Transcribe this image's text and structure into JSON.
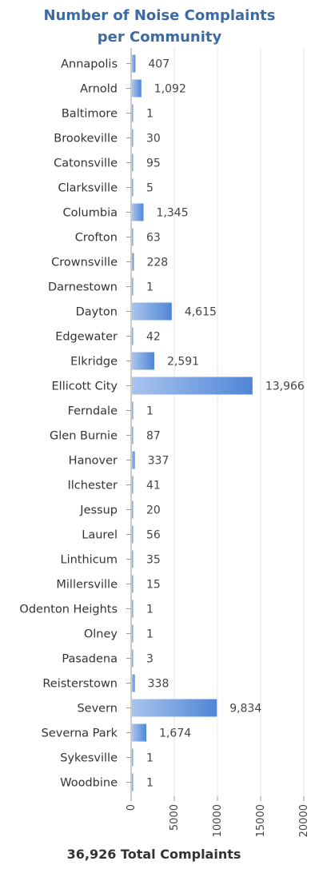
{
  "chart_data": {
    "type": "bar",
    "orientation": "horizontal",
    "title_lines": [
      "Number of Noise Complaints",
      "per Community"
    ],
    "categories": [
      "Annapolis",
      "Arnold",
      "Baltimore",
      "Brookeville",
      "Catonsville",
      "Clarksville",
      "Columbia",
      "Crofton",
      "Crownsville",
      "Darnestown",
      "Dayton",
      "Edgewater",
      "Elkridge",
      "Ellicott City",
      "Ferndale",
      "Glen Burnie",
      "Hanover",
      "Ilchester",
      "Jessup",
      "Laurel",
      "Linthicum",
      "Millersville",
      "Odenton Heights",
      "Olney",
      "Pasadena",
      "Reisterstown",
      "Severn",
      "Severna Park",
      "Sykesville",
      "Woodbine"
    ],
    "values": [
      407,
      1092,
      1,
      30,
      95,
      5,
      1345,
      63,
      228,
      1,
      4615,
      42,
      2591,
      13966,
      1,
      87,
      337,
      41,
      20,
      56,
      35,
      15,
      1,
      1,
      3,
      338,
      9834,
      1674,
      1,
      1
    ],
    "value_labels": [
      "407",
      "1,092",
      "1",
      "30",
      "95",
      "5",
      "1,345",
      "63",
      "228",
      "1",
      "4,615",
      "42",
      "2,591",
      "13,966",
      "1",
      "87",
      "337",
      "41",
      "20",
      "56",
      "35",
      "15",
      "1",
      "1",
      "3",
      "338",
      "9,834",
      "1,674",
      "1",
      "1"
    ],
    "x_ticks": [
      "0",
      "5000",
      "10000",
      "15000",
      "20000"
    ],
    "xlim": [
      0,
      20000
    ],
    "grid": true,
    "bar_color": "#4f86d6",
    "bar_color_light": "#a9c4ef"
  },
  "footer": "36,926 Total Complaints"
}
